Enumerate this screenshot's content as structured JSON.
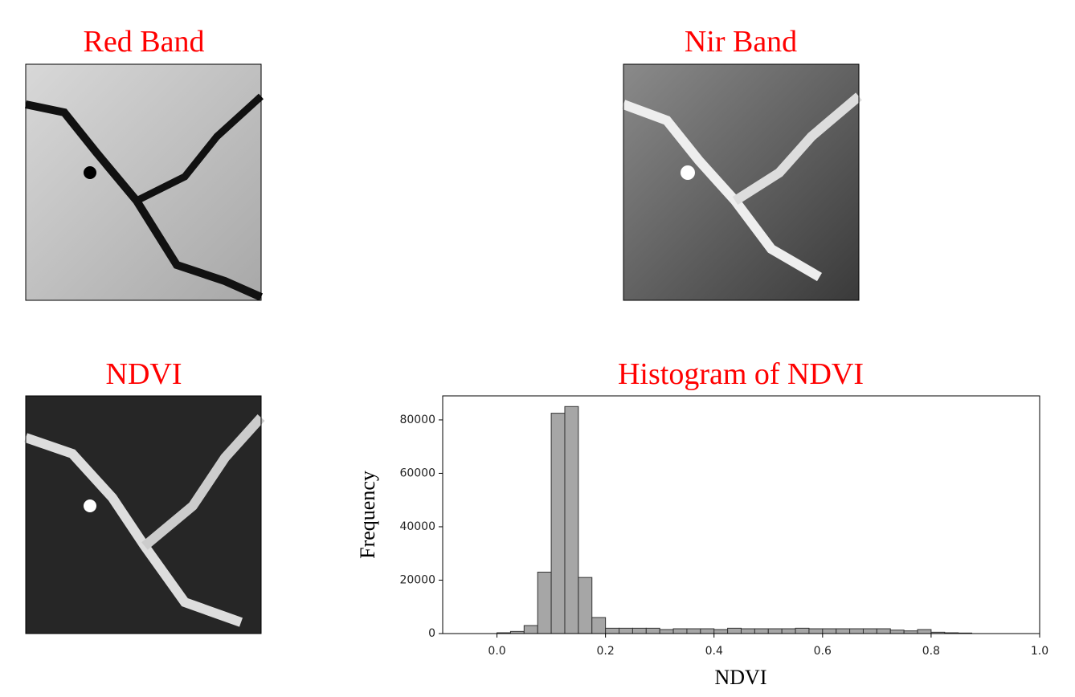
{
  "images": [
    {
      "title": "Red Band"
    },
    {
      "title": "Nir Band"
    },
    {
      "title": "NDVI"
    }
  ],
  "chart_data": {
    "type": "histogram",
    "title": "Histogram of NDVI",
    "xlabel": "NDVI",
    "ylabel": "Frequency",
    "bins": [
      0,
      0.025,
      0.05,
      0.075,
      0.1,
      0.125,
      0.15,
      0.175,
      0.2,
      0.225,
      0.25,
      0.275,
      0.3,
      0.325,
      0.35,
      0.375,
      0.4,
      0.425,
      0.45,
      0.475,
      0.5,
      0.525,
      0.55,
      0.575,
      0.6,
      0.625,
      0.65,
      0.675,
      0.7,
      0.725,
      0.75,
      0.775,
      0.8,
      0.825,
      0.85,
      0.875
    ],
    "values": [
      300,
      800,
      3000,
      23000,
      82500,
      85000,
      21000,
      6000,
      2000,
      2000,
      2000,
      2000,
      1500,
      1800,
      1800,
      1800,
      1500,
      2000,
      1800,
      1800,
      1800,
      1800,
      2000,
      1800,
      1800,
      1800,
      1800,
      1800,
      1800,
      1300,
      1000,
      1500,
      500,
      300,
      200
    ],
    "color": "#a6a6a6",
    "edgecolor": "#333333",
    "xlim": [
      -0.1,
      1.0
    ],
    "ylim": [
      0,
      89000
    ],
    "xticks": [
      {
        "value": 0,
        "label": "0.0"
      },
      0.2,
      0.4,
      0.6,
      0.8,
      {
        "value": 1,
        "label": "1.0"
      }
    ],
    "yticks": [
      0,
      20000,
      40000,
      60000,
      80000
    ]
  }
}
